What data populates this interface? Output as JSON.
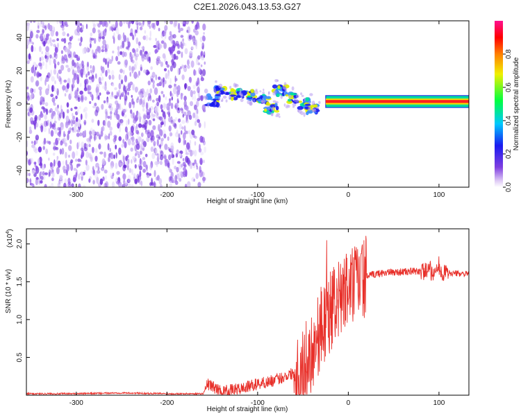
{
  "title": "C2E1.2026.043.13.53.G27",
  "chart_data": [
    {
      "type": "heatmap",
      "name": "spectrogram",
      "xlabel": "Height of straight line (km)",
      "ylabel": "Frequency (Hz)",
      "xlim": [
        -355,
        133
      ],
      "ylim": [
        -50,
        50
      ],
      "xticks": [
        -300,
        -200,
        -100,
        0,
        100
      ],
      "yticks": [
        -40,
        -20,
        0,
        20,
        40
      ],
      "noise_region": {
        "x": [
          -355,
          -158
        ],
        "freq": [
          -50,
          50
        ]
      },
      "transition_blobs": [
        {
          "x": -150,
          "freq": 2
        },
        {
          "x": -140,
          "freq": 8
        },
        {
          "x": -125,
          "freq": 6
        },
        {
          "x": -110,
          "freq": 5
        },
        {
          "x": -95,
          "freq": 3
        },
        {
          "x": -85,
          "freq": -2
        },
        {
          "x": -75,
          "freq": 8
        },
        {
          "x": -62,
          "freq": 4
        },
        {
          "x": -50,
          "freq": 0
        },
        {
          "x": -40,
          "freq": -3
        }
      ],
      "signal_band": {
        "x": [
          -25,
          133
        ],
        "freq": 1.5,
        "width_hz": 3
      },
      "colorbar": {
        "label": "Normalized spectral amplitude",
        "range": [
          0,
          1
        ],
        "ticks": [
          "0.0",
          "0.2",
          "0.4",
          "0.6",
          "0.8"
        ],
        "colors": [
          "#ffffff",
          "#ddc8f5",
          "#7f3fe0",
          "#1a1af0",
          "#00c8ff",
          "#00ff40",
          "#f0f000",
          "#ff8000",
          "#ff0000",
          "#ff1090"
        ]
      }
    },
    {
      "type": "line",
      "name": "snr",
      "xlabel": "Height of straight line (km)",
      "ylabel": "SNR (10 * v/v)",
      "scale_label": "(x10",
      "scale_exp": "4",
      "y_scale_factor": 10000,
      "xlim": [
        -355,
        133
      ],
      "ylim": [
        0,
        2.2
      ],
      "xticks": [
        -300,
        -200,
        -100,
        0,
        100
      ],
      "yticks": [
        "0.5",
        "1.0",
        "1.5",
        "2.0"
      ],
      "color": "#e8302a",
      "series": [
        {
          "name": "SNR",
          "x": [
            -355,
            -300,
            -250,
            -200,
            -160,
            -155,
            -140,
            -120,
            -100,
            -80,
            -60,
            -50,
            -40,
            -30,
            -20,
            -10,
            0,
            10,
            20,
            30,
            40,
            60,
            80,
            100,
            120,
            133
          ],
          "y": [
            0.02,
            0.02,
            0.03,
            0.02,
            0.02,
            0.15,
            0.05,
            0.08,
            0.15,
            0.2,
            0.3,
            0.35,
            0.6,
            0.9,
            1.1,
            1.25,
            1.4,
            1.5,
            1.57,
            1.6,
            1.62,
            1.63,
            1.64,
            1.62,
            1.61,
            1.6
          ]
        }
      ]
    }
  ]
}
